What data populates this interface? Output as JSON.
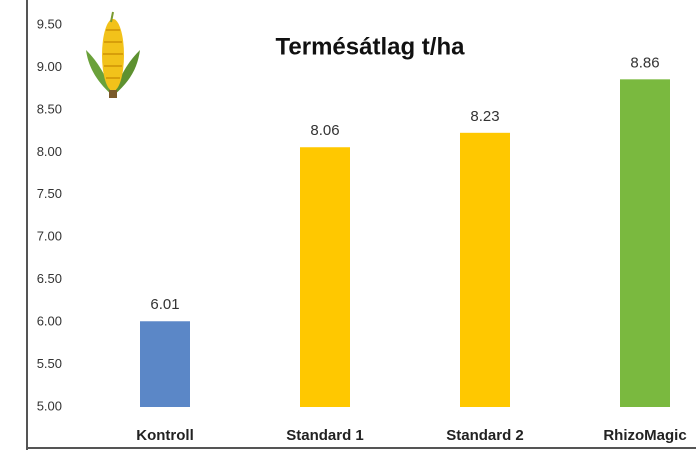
{
  "chart_data": {
    "type": "bar",
    "title": "Termésátlag t/ha",
    "categories": [
      "Kontroll",
      "Standard 1",
      "Standard 2",
      "RhizoMagic"
    ],
    "values": [
      6.01,
      8.06,
      8.23,
      8.86
    ],
    "colors": [
      "#5b87c7",
      "#ffc800",
      "#ffc800",
      "#7ab93f"
    ],
    "ylim": [
      5,
      9.5
    ],
    "yticks": [
      {
        "value": 5,
        "label": "5.00"
      },
      {
        "value": 5.5,
        "label": "5.50"
      },
      {
        "value": 6,
        "label": "6.00"
      },
      {
        "value": 6.5,
        "label": "6.50"
      },
      {
        "value": 7,
        "label": "7.00"
      },
      {
        "value": 7.5,
        "label": "7.50"
      },
      {
        "value": 8,
        "label": "8.00"
      },
      {
        "value": 8.5,
        "label": "8.50"
      },
      {
        "value": 9,
        "label": "9.00"
      },
      {
        "value": 9.5,
        "label": "9.50"
      }
    ],
    "grid": false
  }
}
